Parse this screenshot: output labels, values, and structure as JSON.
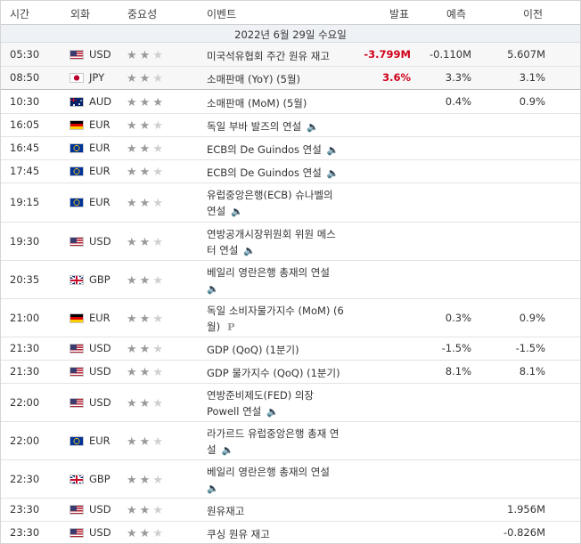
{
  "header": {
    "time": "시간",
    "currency": "외화",
    "importance": "중요성",
    "event": "이벤트",
    "actual": "발표",
    "forecast": "예측",
    "previous": "이전"
  },
  "date_label": "2022년 6월 29일 수요일",
  "icons": {
    "star": "star-icon",
    "speaker": "speaker-icon",
    "preliminary": "p-icon"
  },
  "colors": {
    "negative_actual": "#d0021b",
    "star_on": "#9a9a9a",
    "star_off": "#cfcfcf",
    "date_row_bg": "#eef1f5"
  },
  "events": [
    {
      "time": "05:30",
      "flag": "us",
      "currency": "USD",
      "stars": 2,
      "line1": "미국석유협회 주간 원유 재고",
      "line2": "",
      "speaker": false,
      "p": false,
      "actual": "-3.799M",
      "forecast": "-0.110M",
      "previous": "5.607M"
    },
    {
      "time": "08:50",
      "flag": "jp",
      "currency": "JPY",
      "stars": 2,
      "line1": "소매판매 (YoY) (5월)",
      "line2": "",
      "speaker": false,
      "p": false,
      "actual": "3.6%",
      "forecast": "3.3%",
      "previous": "3.1%"
    },
    {
      "time": "10:30",
      "flag": "au",
      "currency": "AUD",
      "stars": 3,
      "line1": "소매판매 (MoM) (5월)",
      "line2": "",
      "speaker": false,
      "p": false,
      "actual": "",
      "forecast": "0.4%",
      "previous": "0.9%"
    },
    {
      "time": "16:05",
      "flag": "de",
      "currency": "EUR",
      "stars": 2,
      "line1": "독일 부바 발즈의 연설",
      "line2": "",
      "speaker": true,
      "p": false,
      "actual": "",
      "forecast": "",
      "previous": ""
    },
    {
      "time": "16:45",
      "flag": "eu",
      "currency": "EUR",
      "stars": 2,
      "line1": "ECB의 De Guindos 연설",
      "line2": "",
      "speaker": true,
      "p": false,
      "actual": "",
      "forecast": "",
      "previous": ""
    },
    {
      "time": "17:45",
      "flag": "eu",
      "currency": "EUR",
      "stars": 2,
      "line1": "ECB의 De Guindos 연설",
      "line2": "",
      "speaker": true,
      "p": false,
      "actual": "",
      "forecast": "",
      "previous": ""
    },
    {
      "time": "19:15",
      "flag": "eu",
      "currency": "EUR",
      "stars": 2,
      "line1": "유럽중앙은행(ECB) 슈나벨의",
      "line2": "연설",
      "speaker": true,
      "p": false,
      "actual": "",
      "forecast": "",
      "previous": ""
    },
    {
      "time": "19:30",
      "flag": "us",
      "currency": "USD",
      "stars": 2,
      "line1": "연방공개시장위원회 위원 메스",
      "line2": "터 연설",
      "speaker": true,
      "p": false,
      "actual": "",
      "forecast": "",
      "previous": ""
    },
    {
      "time": "20:35",
      "flag": "gb",
      "currency": "GBP",
      "stars": 2,
      "line1": "베일리 영란은행 총재의 연설",
      "line2": "",
      "speaker": true,
      "p": false,
      "actual": "",
      "forecast": "",
      "previous": ""
    },
    {
      "time": "21:00",
      "flag": "de",
      "currency": "EUR",
      "stars": 2,
      "line1": "독일 소비자물가지수 (MoM) (6",
      "line2": "월)",
      "speaker": false,
      "p": true,
      "actual": "",
      "forecast": "0.3%",
      "previous": "0.9%"
    },
    {
      "time": "21:30",
      "flag": "us",
      "currency": "USD",
      "stars": 2,
      "line1": "GDP (QoQ) (1분기)",
      "line2": "",
      "speaker": false,
      "p": false,
      "actual": "",
      "forecast": "-1.5%",
      "previous": "-1.5%"
    },
    {
      "time": "21:30",
      "flag": "us",
      "currency": "USD",
      "stars": 2,
      "line1": "GDP 물가지수 (QoQ) (1분기)",
      "line2": "",
      "speaker": false,
      "p": false,
      "actual": "",
      "forecast": "8.1%",
      "previous": "8.1%"
    },
    {
      "time": "22:00",
      "flag": "us",
      "currency": "USD",
      "stars": 2,
      "line1": "연방준비제도(FED) 의장",
      "line2": "Powell 연설",
      "speaker": true,
      "p": false,
      "actual": "",
      "forecast": "",
      "previous": ""
    },
    {
      "time": "22:00",
      "flag": "eu",
      "currency": "EUR",
      "stars": 2,
      "line1": "라가르드 유럽중앙은행 총재 연",
      "line2": "설",
      "speaker": true,
      "p": false,
      "actual": "",
      "forecast": "",
      "previous": ""
    },
    {
      "time": "22:30",
      "flag": "gb",
      "currency": "GBP",
      "stars": 2,
      "line1": "베일리 영란은행 총재의 연설",
      "line2": "",
      "speaker": true,
      "p": false,
      "actual": "",
      "forecast": "",
      "previous": ""
    },
    {
      "time": "23:30",
      "flag": "us",
      "currency": "USD",
      "stars": 2,
      "line1": "원유재고",
      "line2": "",
      "speaker": false,
      "p": false,
      "actual": "",
      "forecast": "",
      "previous": "1.956M"
    },
    {
      "time": "23:30",
      "flag": "us",
      "currency": "USD",
      "stars": 2,
      "line1": "쿠싱 원유 재고",
      "line2": "",
      "speaker": false,
      "p": false,
      "actual": "",
      "forecast": "",
      "previous": "-0.826M"
    }
  ]
}
